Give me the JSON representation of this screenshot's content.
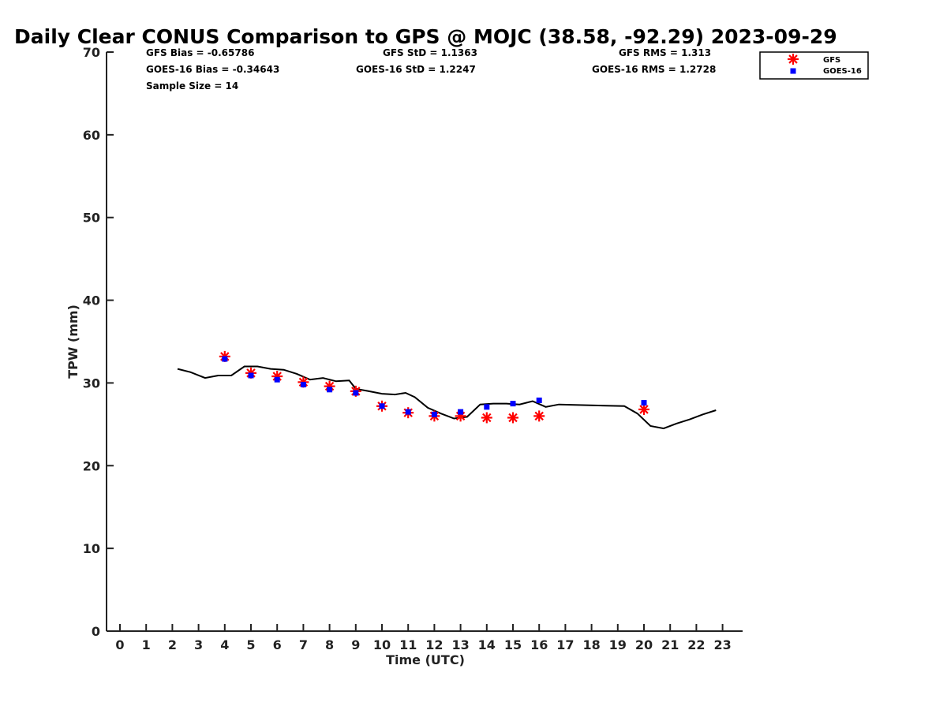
{
  "chart_data": {
    "type": "line",
    "title": "Daily Clear CONUS Comparison to GPS @ MOJC (38.58, -92.29) 2023-09-29",
    "xlabel": "Time (UTC)",
    "ylabel": "TPW (mm)",
    "xlim": [
      -0.5,
      23.7
    ],
    "ylim": [
      0,
      70
    ],
    "xticks": [
      "0",
      "1",
      "2",
      "3",
      "4",
      "5",
      "6",
      "7",
      "8",
      "9",
      "10",
      "11",
      "12",
      "13",
      "14",
      "15",
      "16",
      "17",
      "18",
      "19",
      "20",
      "21",
      "22",
      "23"
    ],
    "yticks": [
      "0",
      "10",
      "20",
      "30",
      "40",
      "50",
      "60",
      "70"
    ],
    "grid": false,
    "legend_position": "top-right",
    "stats": {
      "gfs_bias": "GFS Bias = -0.65786",
      "goes_bias": "GOES-16 Bias = -0.34643",
      "sample_size": "Sample Size = 14",
      "gfs_std": "GFS StD = 1.1363",
      "goes_std": "GOES-16 StD = 1.2247",
      "gfs_rms": "GFS RMS = 1.313",
      "goes_rms": "GOES-16 RMS = 1.2728"
    },
    "gps_line": {
      "x": [
        2.2,
        2.7,
        3.25,
        3.75,
        4.25,
        4.75,
        5.25,
        5.75,
        6.25,
        6.75,
        7.25,
        7.75,
        8.25,
        8.75,
        9.0,
        9.5,
        10.0,
        10.5,
        10.9,
        11.25,
        11.75,
        12.25,
        12.75,
        13.25,
        13.75,
        14.25,
        14.75,
        15.25,
        15.75,
        16.25,
        16.75,
        19.25,
        19.75,
        20.25,
        20.75,
        21.25,
        21.75,
        22.25,
        22.75
      ],
      "y": [
        31.7,
        31.3,
        30.6,
        30.9,
        30.9,
        32.0,
        32.0,
        31.7,
        31.6,
        31.1,
        30.4,
        30.6,
        30.2,
        30.3,
        29.3,
        29.0,
        28.7,
        28.6,
        28.8,
        28.3,
        27.0,
        26.3,
        25.7,
        25.9,
        27.4,
        27.5,
        27.5,
        27.4,
        27.8,
        27.1,
        27.4,
        27.2,
        26.3,
        24.8,
        24.5,
        25.1,
        25.6,
        26.2,
        26.7
      ]
    },
    "series": [
      {
        "name": "GFS",
        "marker": "asterisk",
        "color": "#ff0000",
        "x": [
          4,
          5,
          6,
          7,
          8,
          9,
          10,
          11,
          12,
          13,
          14,
          15,
          16,
          20
        ],
        "y": [
          33.2,
          31.2,
          30.8,
          30.1,
          29.6,
          29.0,
          27.2,
          26.4,
          26.0,
          26.0,
          25.8,
          25.8,
          26.0,
          26.8
        ]
      },
      {
        "name": "GOES-16",
        "marker": "square",
        "color": "#0000ff",
        "x": [
          4,
          5,
          6,
          7,
          8,
          9,
          10,
          11,
          12,
          13,
          14,
          15,
          16,
          20
        ],
        "y": [
          32.9,
          30.9,
          30.4,
          29.8,
          29.2,
          28.8,
          27.2,
          26.5,
          26.2,
          26.5,
          27.1,
          27.5,
          27.9,
          27.6
        ]
      }
    ]
  }
}
